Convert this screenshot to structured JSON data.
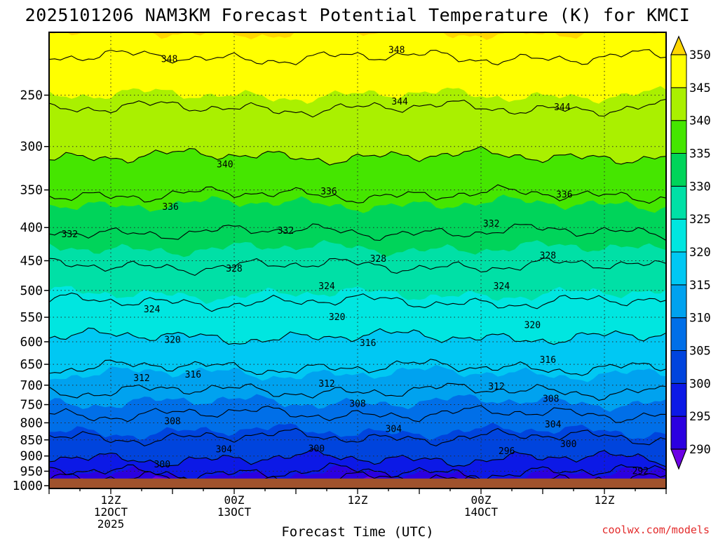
{
  "chart_data": {
    "type": "heatmap",
    "title": "2025101206 NAM3KM Forecast Potential Temperature (K) for KMCI",
    "xlabel": "Forecast Time (UTC)",
    "ylabel": "",
    "credit": "coolwx.com/models",
    "x_range_hours": [
      0,
      60
    ],
    "x_ticks": [
      {
        "hour": 6,
        "lines": [
          "12Z",
          "12OCT",
          "2025"
        ]
      },
      {
        "hour": 18,
        "lines": [
          "00Z",
          "13OCT"
        ]
      },
      {
        "hour": 30,
        "lines": [
          "12Z"
        ]
      },
      {
        "hour": 42,
        "lines": [
          "00Z",
          "14OCT"
        ]
      },
      {
        "hour": 54,
        "lines": [
          "12Z"
        ]
      }
    ],
    "y_axis": "pressure-log-inverted",
    "y_range_hpa": [
      1010,
      200
    ],
    "y_ticks": [
      250,
      300,
      350,
      400,
      450,
      500,
      550,
      600,
      650,
      700,
      750,
      800,
      850,
      900,
      950,
      1000
    ],
    "ground_level_hpa": 975,
    "colorbar": {
      "levels": [
        290,
        295,
        300,
        305,
        310,
        315,
        320,
        325,
        330,
        335,
        340,
        345,
        350
      ],
      "colors": [
        "#6c00e6",
        "#2b00e0",
        "#0c19e6",
        "#0044dd",
        "#006fe8",
        "#00a2ef",
        "#00c8f3",
        "#00e6e0",
        "#00e0a6",
        "#00d45a",
        "#45e600",
        "#aaf000",
        "#ffff00",
        "#ffd700"
      ],
      "extends": "both"
    },
    "contour_interval": 4,
    "profile_hpa": [
      975,
      950,
      925,
      900,
      875,
      850,
      800,
      750,
      700,
      650,
      600,
      550,
      500,
      450,
      400,
      350,
      300,
      250,
      200
    ],
    "profile_theta_k": [
      292.5,
      296.5,
      299,
      300.5,
      302,
      303.5,
      306.5,
      309.5,
      313,
      316.5,
      319.5,
      322,
      325.5,
      328.5,
      332.5,
      336.5,
      341,
      345,
      350
    ],
    "contour_labels": [
      {
        "value": 348,
        "hour": 11.7,
        "hpa": 220
      },
      {
        "value": 348,
        "hour": 33.8,
        "hpa": 213
      },
      {
        "value": 344,
        "hour": 34.1,
        "hpa": 256
      },
      {
        "value": 344,
        "hour": 49.9,
        "hpa": 261
      },
      {
        "value": 340,
        "hour": 17.1,
        "hpa": 320
      },
      {
        "value": 336,
        "hour": 27.2,
        "hpa": 352
      },
      {
        "value": 336,
        "hour": 50.1,
        "hpa": 356
      },
      {
        "value": 336,
        "hour": 11.8,
        "hpa": 372
      },
      {
        "value": 332,
        "hour": 2.0,
        "hpa": 410
      },
      {
        "value": 332,
        "hour": 23.0,
        "hpa": 405
      },
      {
        "value": 332,
        "hour": 43.0,
        "hpa": 395
      },
      {
        "value": 328,
        "hour": 18.0,
        "hpa": 463
      },
      {
        "value": 328,
        "hour": 32.0,
        "hpa": 447
      },
      {
        "value": 328,
        "hour": 48.5,
        "hpa": 442
      },
      {
        "value": 324,
        "hour": 27.0,
        "hpa": 493
      },
      {
        "value": 324,
        "hour": 44.0,
        "hpa": 493
      },
      {
        "value": 324,
        "hour": 10.0,
        "hpa": 535
      },
      {
        "value": 320,
        "hour": 28.0,
        "hpa": 550
      },
      {
        "value": 320,
        "hour": 47.0,
        "hpa": 566
      },
      {
        "value": 320,
        "hour": 12.0,
        "hpa": 596
      },
      {
        "value": 316,
        "hour": 31.0,
        "hpa": 603
      },
      {
        "value": 316,
        "hour": 48.5,
        "hpa": 640
      },
      {
        "value": 316,
        "hour": 14.0,
        "hpa": 675
      },
      {
        "value": 312,
        "hour": 9.0,
        "hpa": 683
      },
      {
        "value": 312,
        "hour": 27.0,
        "hpa": 697
      },
      {
        "value": 312,
        "hour": 43.5,
        "hpa": 704
      },
      {
        "value": 308,
        "hour": 30.0,
        "hpa": 748
      },
      {
        "value": 308,
        "hour": 48.8,
        "hpa": 735
      },
      {
        "value": 308,
        "hour": 12.0,
        "hpa": 796
      },
      {
        "value": 304,
        "hour": 33.5,
        "hpa": 818
      },
      {
        "value": 304,
        "hour": 49.0,
        "hpa": 805
      },
      {
        "value": 304,
        "hour": 17.0,
        "hpa": 880
      },
      {
        "value": 300,
        "hour": 26.0,
        "hpa": 877
      },
      {
        "value": 300,
        "hour": 50.5,
        "hpa": 863
      },
      {
        "value": 300,
        "hour": 11.0,
        "hpa": 928
      },
      {
        "value": 296,
        "hour": 44.5,
        "hpa": 885
      },
      {
        "value": 292,
        "hour": 57.5,
        "hpa": 950
      }
    ]
  }
}
